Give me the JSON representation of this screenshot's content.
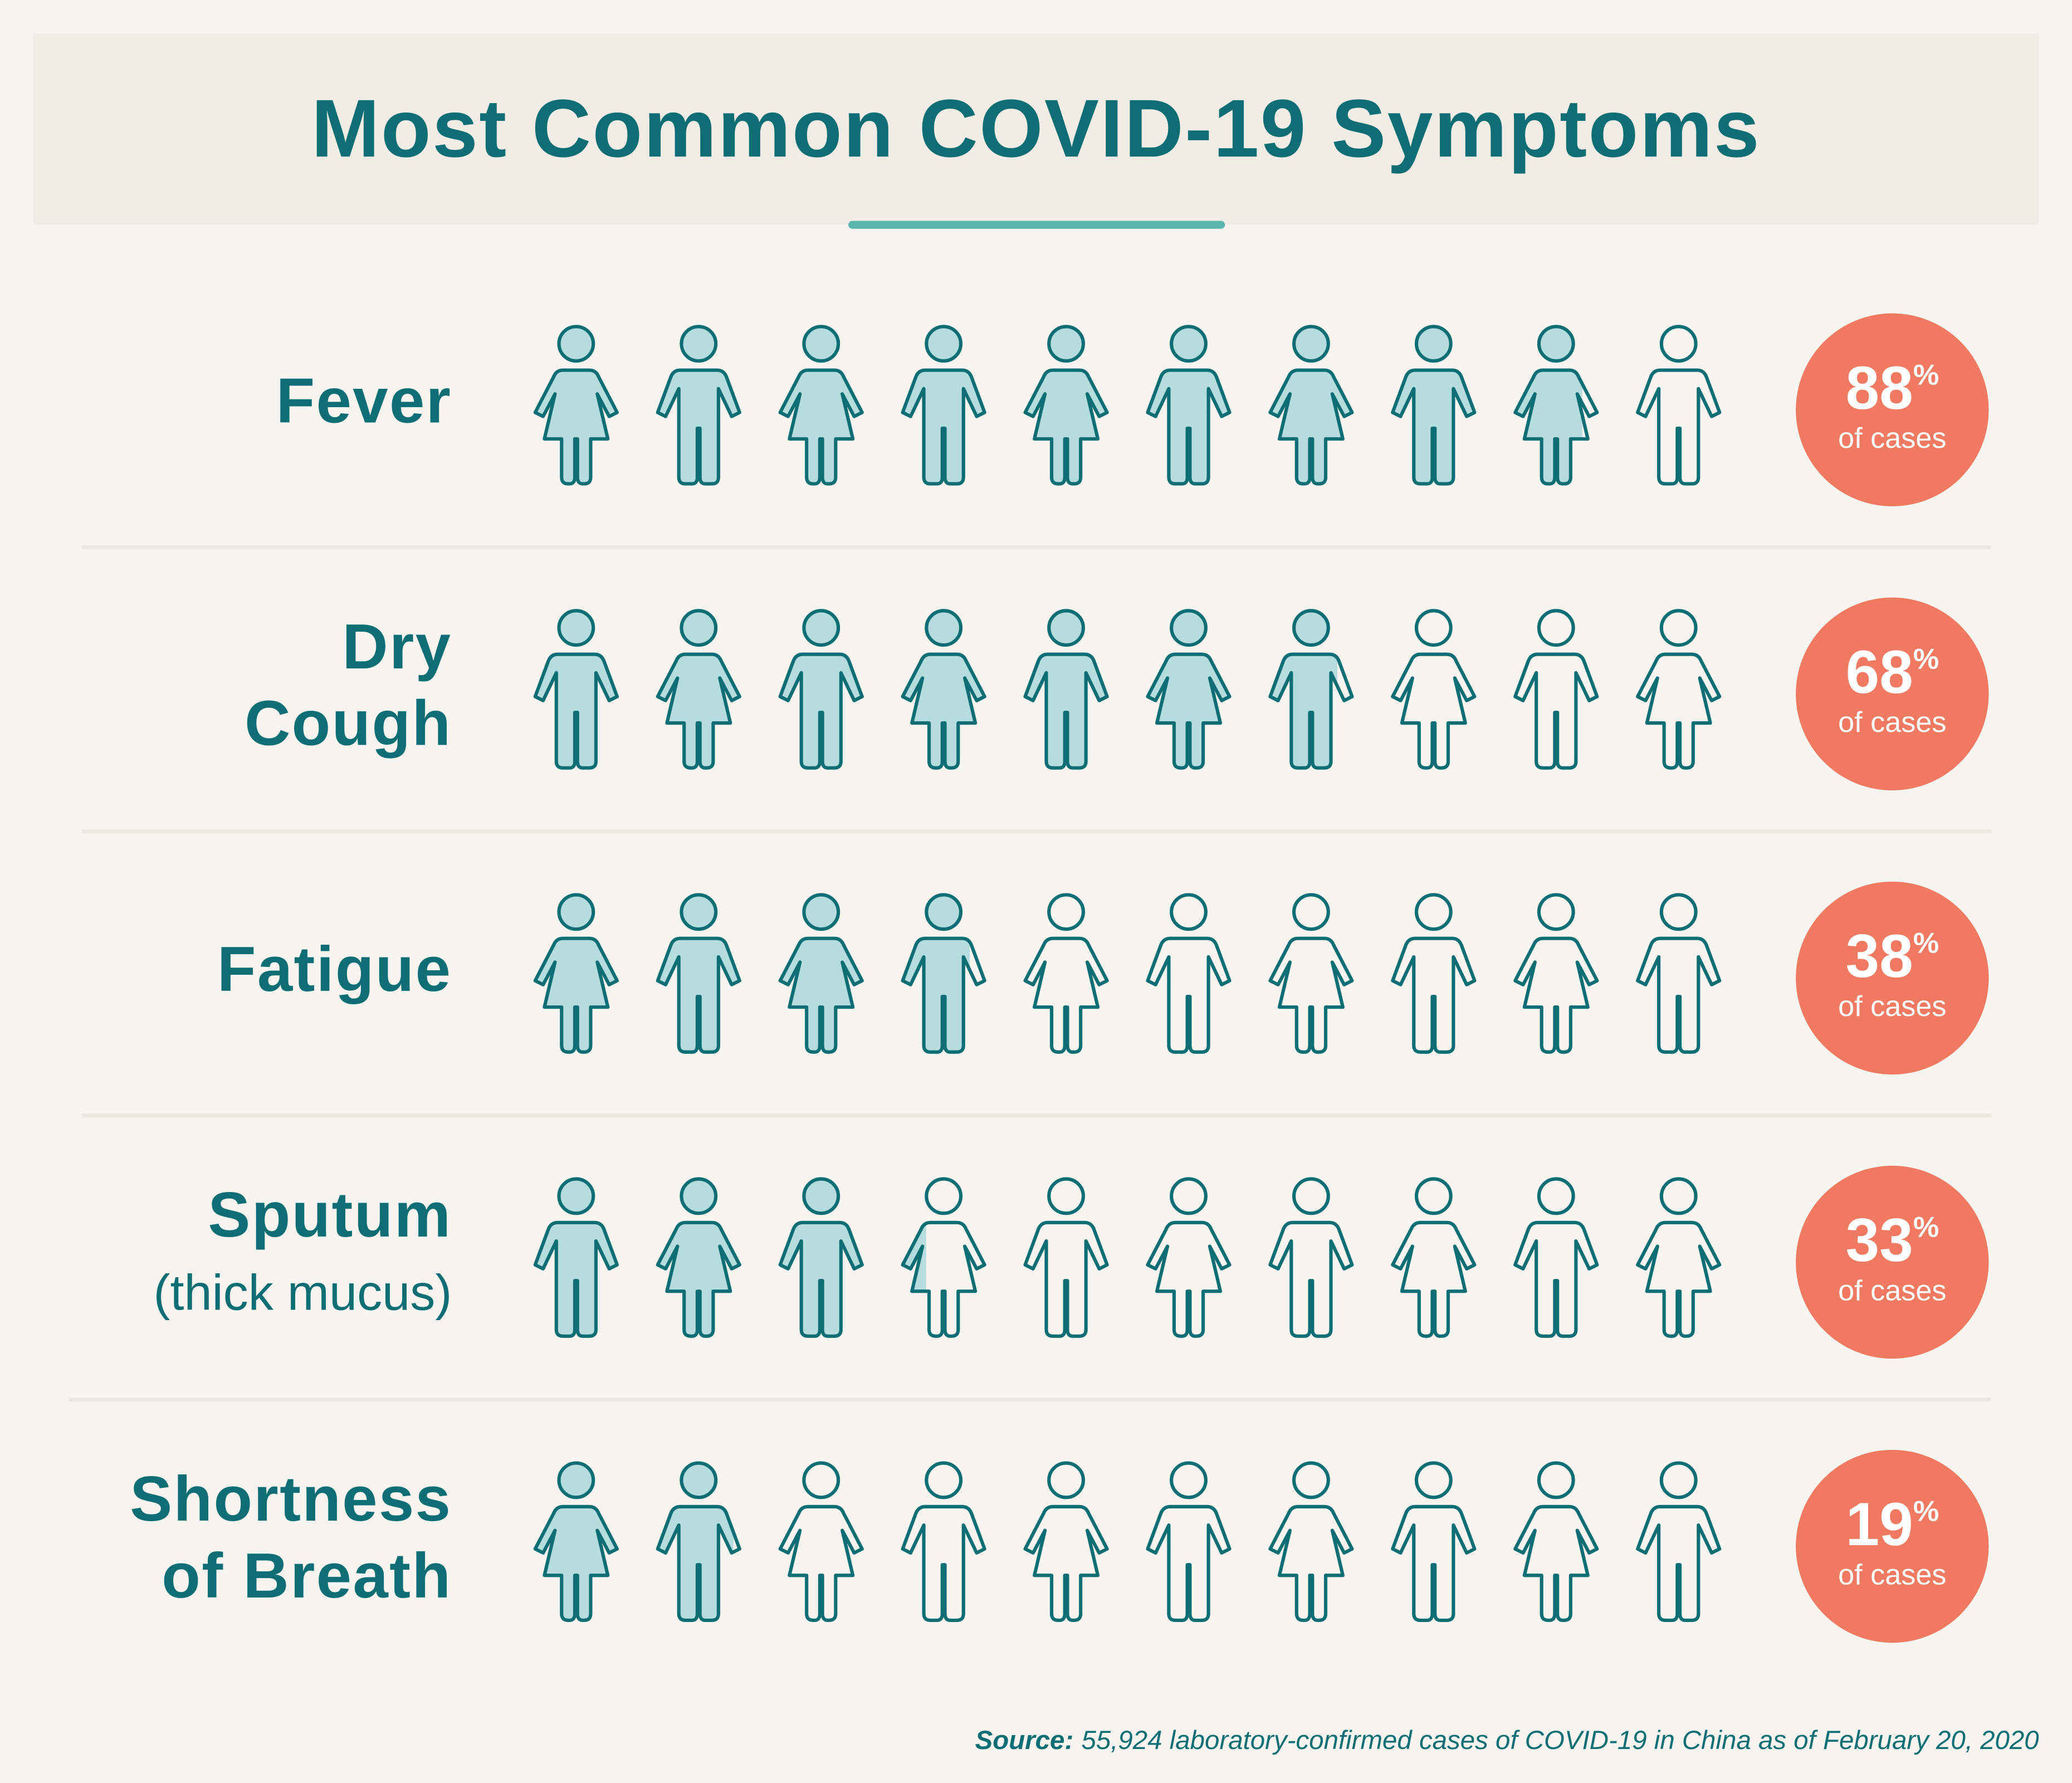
{
  "chart_data": {
    "type": "pictogram",
    "title": "Most Common COVID-19 Symptoms",
    "categories": [
      [
        "Fever"
      ],
      [
        "Dry",
        "Cough"
      ],
      [
        "Fatigue"
      ],
      [
        "Sputum"
      ],
      [
        "Shortness",
        "of Breath"
      ]
    ],
    "category_notes": [
      null,
      null,
      null,
      "(thick mucus)",
      null
    ],
    "values": [
      88,
      68,
      38,
      33,
      19
    ],
    "unit": "%",
    "value_note": "of cases",
    "xlim": [
      0,
      100
    ],
    "color": "#b5dcdf",
    "source_label": "Source:",
    "source": "55,924 laboratory-confirmed cases of COVID-19 in China as of February 20, 2020"
  }
}
